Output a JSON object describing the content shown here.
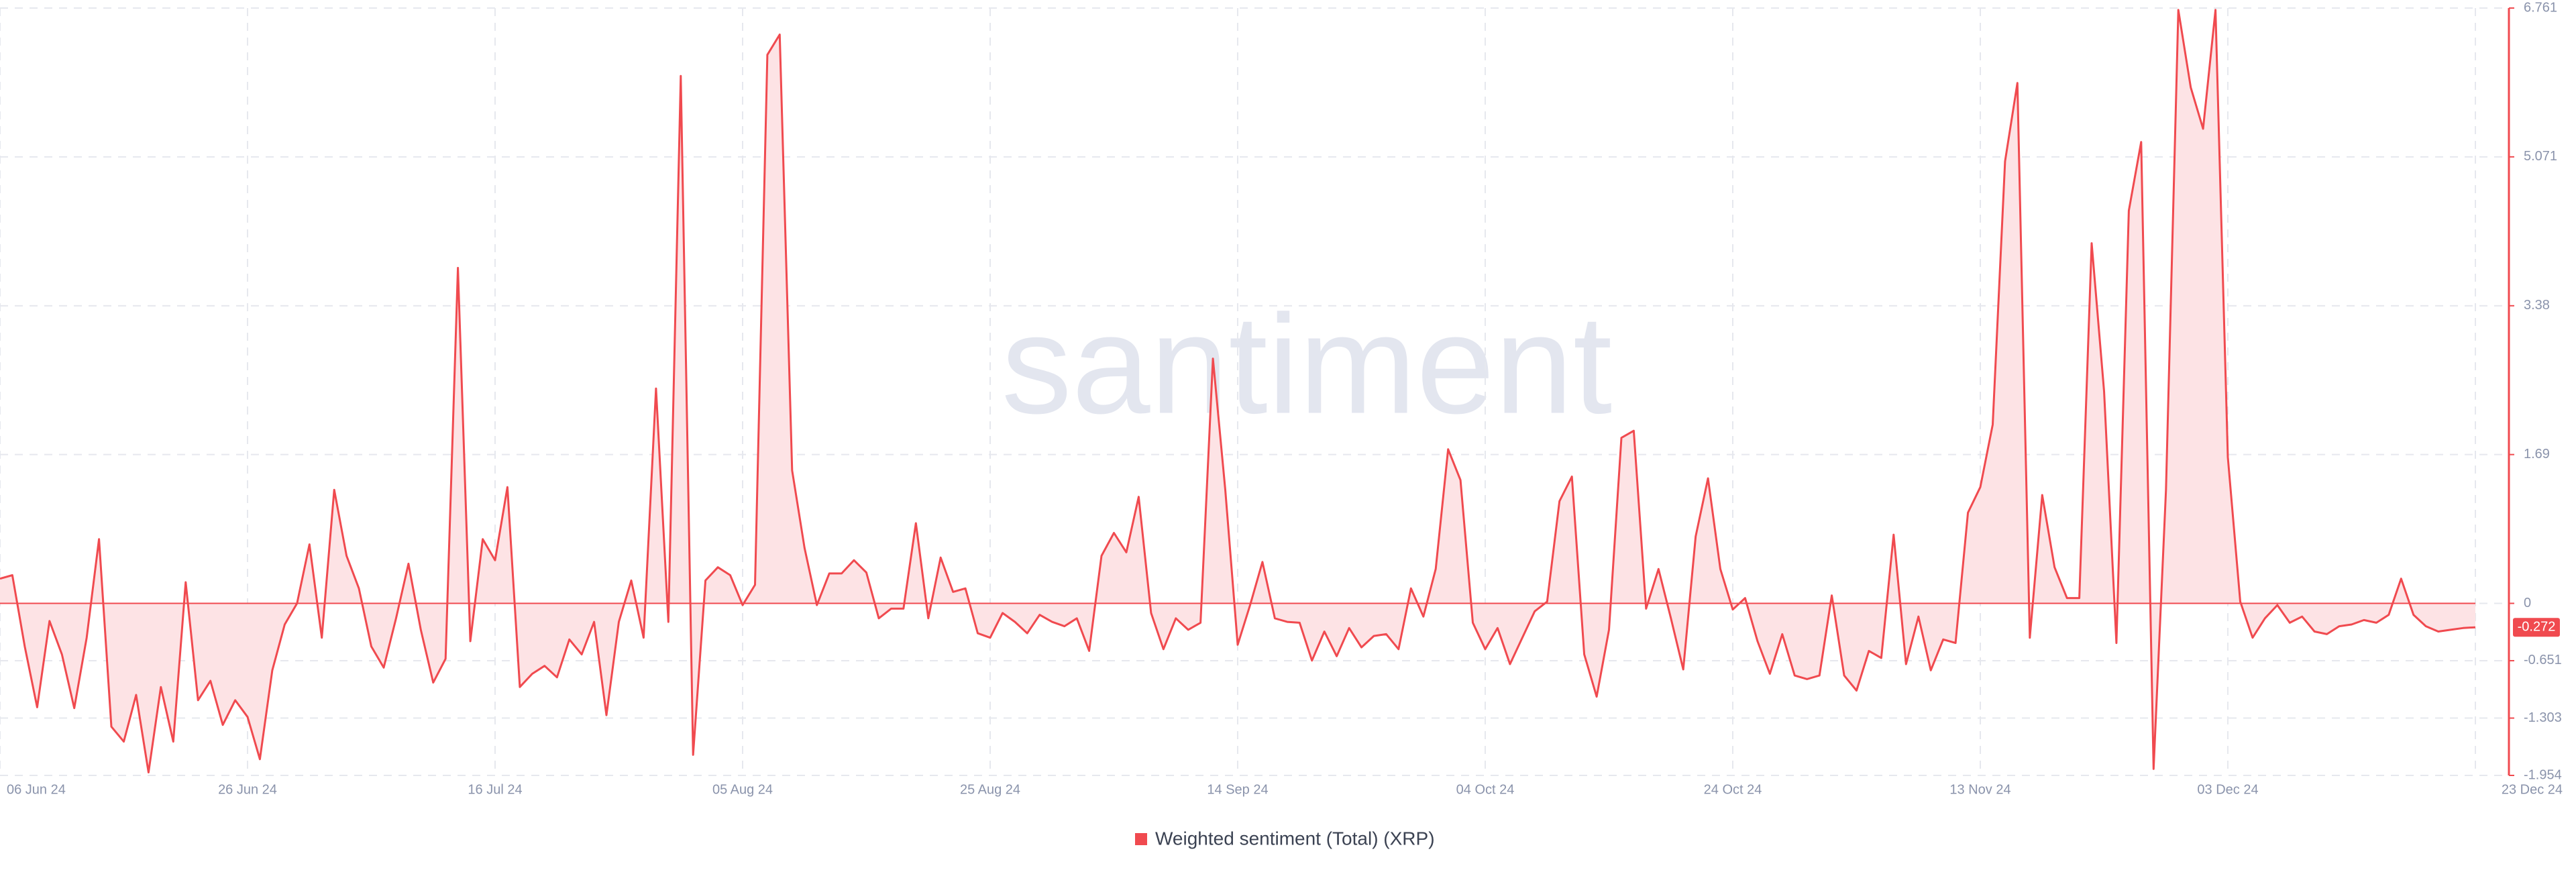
{
  "chart_data": {
    "type": "line",
    "watermark": "santiment",
    "series": [
      {
        "name": "Weighted sentiment (Total) (XRP)",
        "color": "#f04a4f",
        "fill": "#fde3e5",
        "values": [
          0.28,
          0.32,
          -0.49,
          -1.18,
          -0.2,
          -0.58,
          -1.19,
          -0.39,
          0.73,
          -1.4,
          -1.57,
          -1.04,
          -1.92,
          -0.95,
          -1.57,
          0.24,
          -1.1,
          -0.88,
          -1.38,
          -1.1,
          -1.29,
          -1.77,
          -0.76,
          -0.24,
          0,
          0.67,
          -0.39,
          1.29,
          0.54,
          0.17,
          -0.49,
          -0.73,
          -0.17,
          0.45,
          -0.3,
          -0.9,
          -0.63,
          3.81,
          -0.43,
          0.73,
          0.49,
          1.32,
          -0.95,
          -0.8,
          -0.71,
          -0.84,
          -0.41,
          -0.58,
          -0.21,
          -1.27,
          -0.21,
          0.26,
          -0.39,
          2.44,
          -0.21,
          5.99,
          -1.72,
          0.26,
          0.41,
          0.32,
          -0.02,
          0.21,
          6.23,
          6.46,
          1.51,
          0.63,
          -0.02,
          0.34,
          0.34,
          0.49,
          0.35,
          -0.17,
          -0.06,
          -0.06,
          0.91,
          -0.17,
          0.52,
          0.13,
          0.17,
          -0.34,
          -0.39,
          -0.11,
          -0.21,
          -0.34,
          -0.13,
          -0.21,
          -0.26,
          -0.17,
          -0.54,
          0.54,
          0.8,
          0.58,
          1.21,
          -0.11,
          -0.52,
          -0.17,
          -0.3,
          -0.22,
          2.78,
          1.29,
          -0.47,
          -0.02,
          0.47,
          -0.17,
          -0.21,
          -0.22,
          -0.65,
          -0.32,
          -0.6,
          -0.28,
          -0.5,
          -0.37,
          -0.35,
          -0.52,
          0.17,
          -0.15,
          0.39,
          1.75,
          1.4,
          -0.22,
          -0.52,
          -0.28,
          -0.69,
          -0.39,
          -0.09,
          0.02,
          1.16,
          1.44,
          -0.58,
          -1.06,
          -0.3,
          1.88,
          1.96,
          -0.06,
          0.39,
          -0.17,
          -0.75,
          0.76,
          1.42,
          0.39,
          -0.07,
          0.06,
          -0.43,
          -0.8,
          -0.35,
          -0.82,
          -0.86,
          -0.82,
          0.09,
          -0.82,
          -0.99,
          -0.54,
          -0.62,
          0.78,
          -0.69,
          -0.15,
          -0.76,
          -0.41,
          -0.45,
          1.03,
          1.32,
          2.03,
          5.02,
          5.91,
          -0.39,
          1.23,
          0.41,
          0.06,
          0.06,
          4.09,
          2.41,
          -0.45,
          4.46,
          5.24,
          -1.88,
          1.29,
          6.74,
          5.86,
          5.39,
          6.74,
          1.66,
          0.02,
          -0.39,
          -0.17,
          -0.02,
          -0.22,
          -0.15,
          -0.32,
          -0.35,
          -0.26,
          -0.24,
          -0.19,
          -0.22,
          -0.13,
          0.28,
          -0.13,
          -0.26,
          -0.32,
          -0.3,
          -0.28,
          -0.272
        ]
      }
    ],
    "current_value": -0.272,
    "xlim": [
      0,
      200
    ],
    "xticks": [
      {
        "value": 0,
        "label": "06 Jun 24"
      },
      {
        "value": 20,
        "label": "26 Jun 24"
      },
      {
        "value": 40,
        "label": "16 Jul 24"
      },
      {
        "value": 60,
        "label": "05 Aug 24"
      },
      {
        "value": 80,
        "label": "25 Aug 24"
      },
      {
        "value": 100,
        "label": "14 Sep 24"
      },
      {
        "value": 120,
        "label": "04 Oct 24"
      },
      {
        "value": 140,
        "label": "24 Oct 24"
      },
      {
        "value": 160,
        "label": "13 Nov 24"
      },
      {
        "value": 180,
        "label": "03 Dec 24"
      },
      {
        "value": 200,
        "label": "23 Dec 24"
      }
    ],
    "ylim": [
      -1.954,
      6.761
    ],
    "yticks": [
      6.761,
      5.071,
      3.38,
      1.69,
      0,
      -0.651,
      -1.303,
      -1.954
    ],
    "grid": true
  }
}
